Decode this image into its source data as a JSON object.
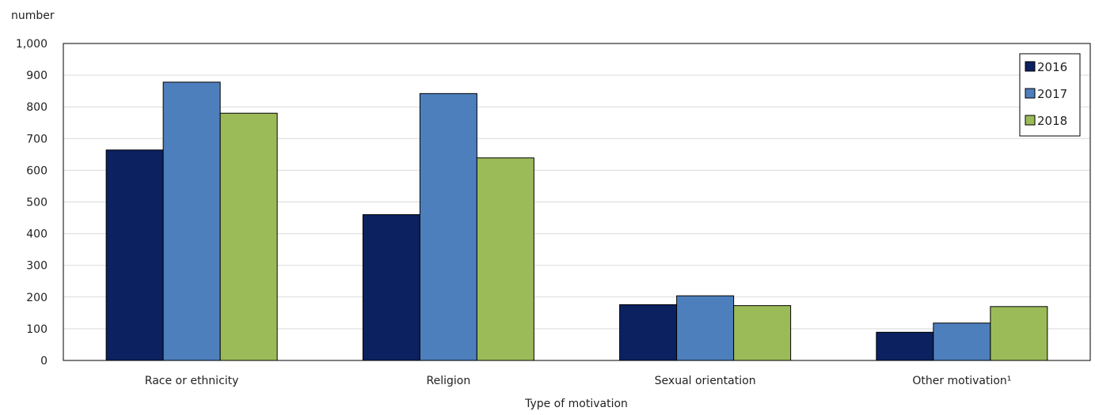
{
  "chart_data": {
    "type": "bar",
    "ylabel": "number",
    "xlabel": "Type of motivation",
    "categories": [
      "Race or ethnicity",
      "Religion",
      "Sexual orientation",
      "Other motivation¹"
    ],
    "series": [
      {
        "name": "2016",
        "values": [
          664,
          460,
          176,
          89
        ]
      },
      {
        "name": "2017",
        "values": [
          878,
          842,
          204,
          118
        ]
      },
      {
        "name": "2018",
        "values": [
          780,
          639,
          173,
          170
        ]
      }
    ],
    "ylim": [
      0,
      1000
    ],
    "yticks": [
      0,
      100,
      200,
      300,
      400,
      500,
      600,
      700,
      800,
      900,
      1000
    ],
    "ytick_labels": [
      "0",
      "100",
      "200",
      "300",
      "400",
      "500",
      "600",
      "700",
      "800",
      "900",
      "1,000"
    ],
    "grid": true,
    "legend_position": "top-right",
    "colors": [
      "#0b2160",
      "#4e7fbd",
      "#9bbb59"
    ]
  }
}
